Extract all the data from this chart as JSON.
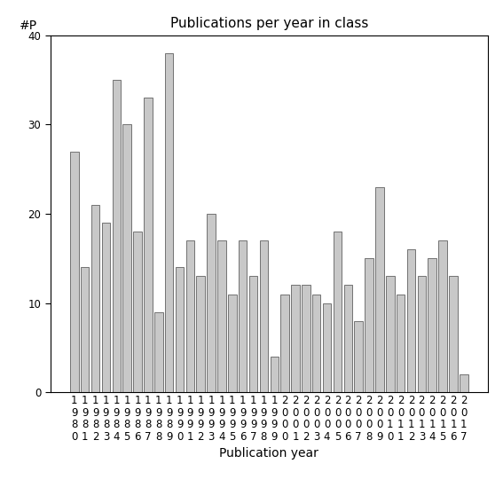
{
  "title": "Publications per year in class",
  "xlabel": "Publication year",
  "ylabel": "#P",
  "years": [
    "1980",
    "1981",
    "1982",
    "1983",
    "1984",
    "1985",
    "1986",
    "1987",
    "1988",
    "1989",
    "1990",
    "1991",
    "1992",
    "1993",
    "1994",
    "1995",
    "1996",
    "1997",
    "1998",
    "1999",
    "2000",
    "2001",
    "2002",
    "2003",
    "2004",
    "2005",
    "2006",
    "2007",
    "2008",
    "2009",
    "2010",
    "2011",
    "2012",
    "2013",
    "2014",
    "2015",
    "2016",
    "2017"
  ],
  "values": [
    27,
    14,
    21,
    19,
    35,
    30,
    18,
    33,
    9,
    38,
    14,
    17,
    13,
    20,
    17,
    11,
    17,
    13,
    17,
    4,
    11,
    12,
    12,
    11,
    10,
    18,
    12,
    8,
    15,
    23,
    13,
    11,
    16,
    13,
    15,
    17,
    13,
    2
  ],
  "bar_color": "#c8c8c8",
  "bar_edgecolor": "#606060",
  "ylim": [
    0,
    40
  ],
  "yticks": [
    0,
    10,
    20,
    30,
    40
  ],
  "background_color": "#ffffff",
  "title_fontsize": 11,
  "axis_label_fontsize": 10,
  "tick_fontsize": 8.5
}
